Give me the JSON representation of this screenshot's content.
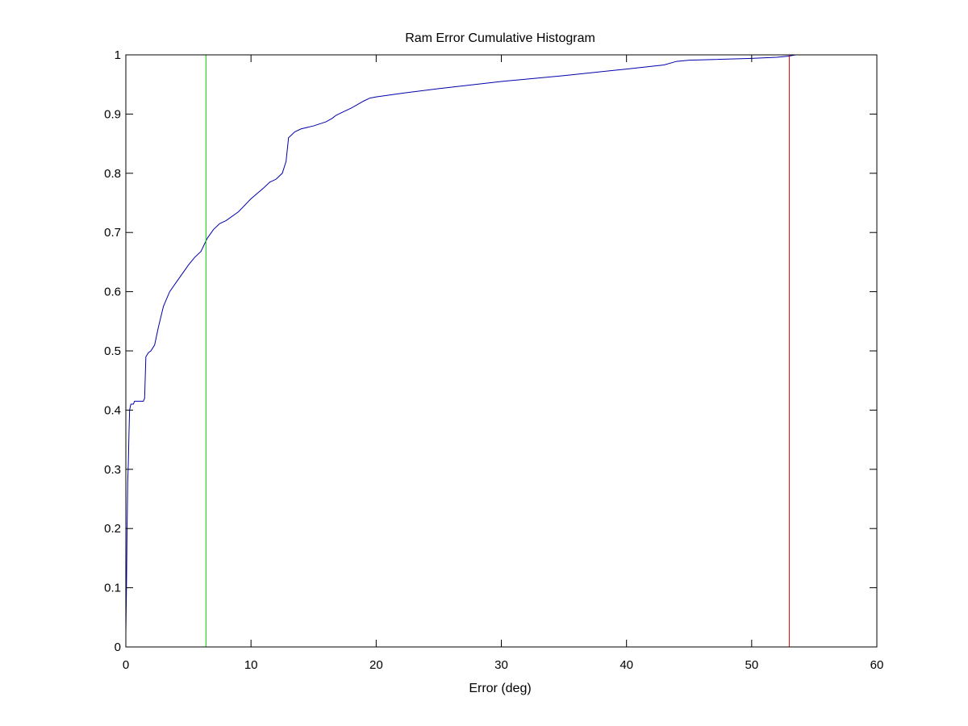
{
  "chart_data": {
    "type": "line",
    "title": "Ram Error Cumulative Histogram",
    "xlabel": "Error (deg)",
    "ylabel": "",
    "xlim": [
      0,
      60
    ],
    "ylim": [
      0,
      1
    ],
    "xticks": [
      0,
      10,
      20,
      30,
      40,
      50,
      60
    ],
    "yticks": [
      0,
      0.1,
      0.2,
      0.3,
      0.4,
      0.5,
      0.6,
      0.7,
      0.8,
      0.9,
      1
    ],
    "grid": false,
    "series": [
      {
        "color": "#0000aa",
        "points": [
          [
            0.0,
            0.025
          ],
          [
            0.05,
            0.1
          ],
          [
            0.1,
            0.2
          ],
          [
            0.15,
            0.28
          ],
          [
            0.2,
            0.31
          ],
          [
            0.25,
            0.36
          ],
          [
            0.3,
            0.4
          ],
          [
            0.4,
            0.41
          ],
          [
            0.6,
            0.41
          ],
          [
            0.7,
            0.415
          ],
          [
            1.0,
            0.415
          ],
          [
            1.4,
            0.415
          ],
          [
            1.5,
            0.42
          ],
          [
            1.6,
            0.49
          ],
          [
            1.8,
            0.497
          ],
          [
            2.0,
            0.5
          ],
          [
            2.3,
            0.51
          ],
          [
            2.6,
            0.54
          ],
          [
            3.0,
            0.575
          ],
          [
            3.5,
            0.6
          ],
          [
            4.0,
            0.615
          ],
          [
            4.5,
            0.63
          ],
          [
            5.0,
            0.645
          ],
          [
            5.5,
            0.658
          ],
          [
            6.0,
            0.668
          ],
          [
            6.5,
            0.69
          ],
          [
            7.0,
            0.705
          ],
          [
            7.5,
            0.715
          ],
          [
            8.0,
            0.72
          ],
          [
            9.0,
            0.735
          ],
          [
            10.0,
            0.757
          ],
          [
            11.0,
            0.775
          ],
          [
            11.5,
            0.785
          ],
          [
            12.0,
            0.79
          ],
          [
            12.5,
            0.8
          ],
          [
            12.8,
            0.82
          ],
          [
            13.0,
            0.86
          ],
          [
            13.5,
            0.87
          ],
          [
            14.0,
            0.875
          ],
          [
            15.0,
            0.88
          ],
          [
            16.0,
            0.887
          ],
          [
            16.5,
            0.893
          ],
          [
            16.8,
            0.898
          ],
          [
            17.5,
            0.905
          ],
          [
            18.0,
            0.91
          ],
          [
            19.0,
            0.922
          ],
          [
            19.5,
            0.927
          ],
          [
            20.0,
            0.929
          ],
          [
            22.0,
            0.935
          ],
          [
            25.0,
            0.943
          ],
          [
            30.0,
            0.955
          ],
          [
            35.0,
            0.965
          ],
          [
            40.0,
            0.976
          ],
          [
            43.0,
            0.983
          ],
          [
            44.0,
            0.989
          ],
          [
            45.0,
            0.991
          ],
          [
            50.0,
            0.994
          ],
          [
            52.0,
            0.996
          ],
          [
            53.0,
            0.998
          ],
          [
            53.5,
            1.0
          ]
        ]
      },
      {
        "color": "#00cc00",
        "type": "vline",
        "x": 6.4
      },
      {
        "color": "#dd0000",
        "type": "vline",
        "x": 53.0
      }
    ]
  }
}
